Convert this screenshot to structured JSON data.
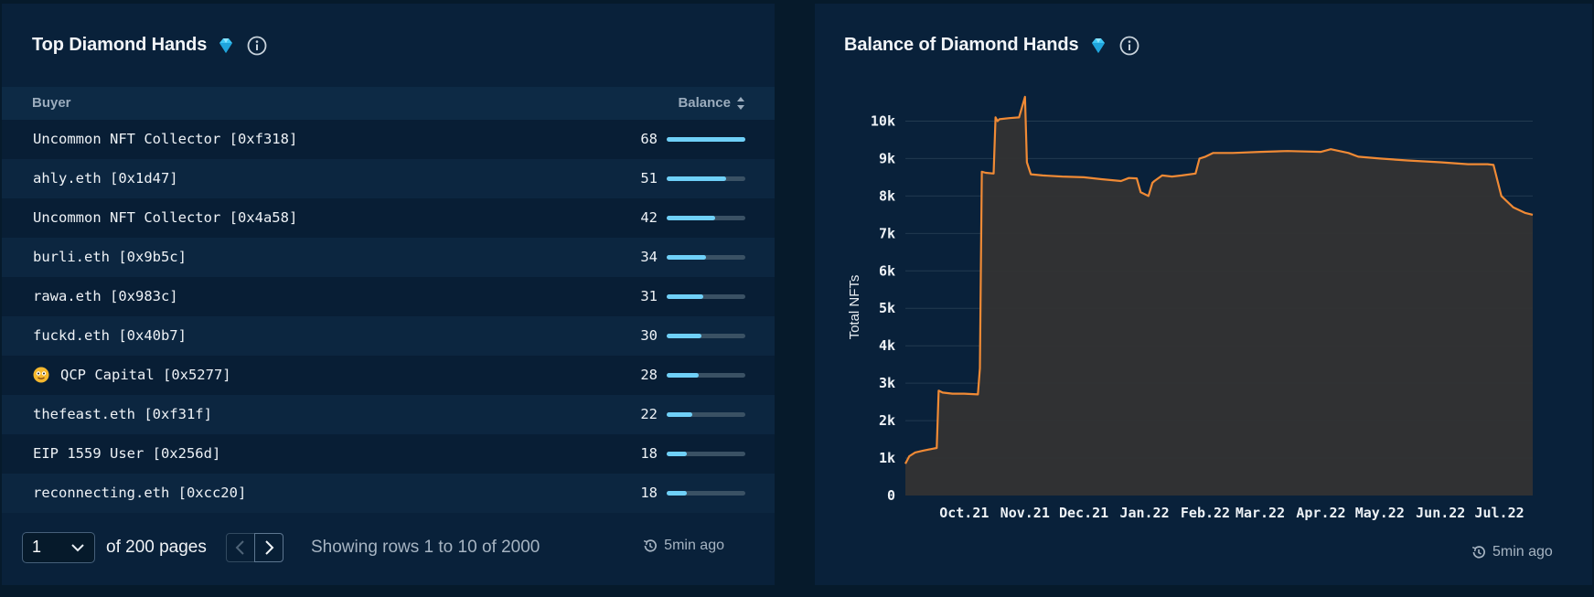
{
  "colors": {
    "accent": "#6fd0f8",
    "line": "#f08a35",
    "area": "#333333",
    "panel": "#09213a"
  },
  "left_panel": {
    "title": "Top Diamond Hands",
    "title_icon": "diamond-icon",
    "info_icon": "info-icon",
    "headers": {
      "buyer": "Buyer",
      "balance": "Balance"
    },
    "rows": [
      {
        "buyer": "Uncommon NFT Collector [0xf318]",
        "balance": "68",
        "share": 1.0
      },
      {
        "buyer": "ahly.eth [0x1d47]",
        "balance": "51",
        "share": 0.75
      },
      {
        "buyer": "Uncommon NFT Collector [0x4a58]",
        "balance": "42",
        "share": 0.62
      },
      {
        "buyer": "burli.eth [0x9b5c]",
        "balance": "34",
        "share": 0.5
      },
      {
        "buyer": "rawa.eth [0x983c]",
        "balance": "31",
        "share": 0.46
      },
      {
        "buyer": "fuckd.eth [0x40b7]",
        "balance": "30",
        "share": 0.44
      },
      {
        "buyer": "QCP Capital [0x5277]",
        "balance": "28",
        "share": 0.41,
        "avatar": "emoji-face-icon"
      },
      {
        "buyer": "thefeast.eth [0xf31f]",
        "balance": "22",
        "share": 0.32
      },
      {
        "buyer": "EIP 1559 User [0x256d]",
        "balance": "18",
        "share": 0.26
      },
      {
        "buyer": "reconnecting.eth [0xcc20]",
        "balance": "18",
        "share": 0.26
      }
    ],
    "pagination": {
      "current_page": "1",
      "of_pages": "of 200 pages",
      "showing": "Showing rows 1 to 10 of 2000"
    },
    "updated": "5min ago"
  },
  "right_panel": {
    "title": "Balance of Diamond Hands",
    "title_icon": "diamond-icon",
    "info_icon": "info-icon",
    "updated": "5min ago"
  },
  "chart_data": {
    "type": "area",
    "xlabel": "",
    "ylabel": "Total NFTs",
    "ylim": [
      0,
      10500
    ],
    "yticks": [
      0,
      1000,
      2000,
      3000,
      4000,
      5000,
      6000,
      7000,
      8000,
      9000,
      10000
    ],
    "ytick_labels": [
      "0",
      "1k",
      "2k",
      "3k",
      "4k",
      "5k",
      "6k",
      "7k",
      "8k",
      "9k",
      "10k"
    ],
    "xlim": [
      "2021-09-01",
      "2022-07-18"
    ],
    "xticks": [
      "2021-10-01",
      "2021-11-01",
      "2021-12-01",
      "2022-01-01",
      "2022-02-01",
      "2022-03-01",
      "2022-04-01",
      "2022-05-01",
      "2022-06-01",
      "2022-07-01"
    ],
    "xtick_labels": [
      "Oct.21",
      "Nov.21",
      "Dec.21",
      "Jan.22",
      "Feb.22",
      "Mar.22",
      "Apr.22",
      "May.22",
      "Jun.22",
      "Jul.22"
    ],
    "grid": true,
    "series": [
      {
        "x": [
          "2021-09-01",
          "2021-09-03",
          "2021-09-06",
          "2021-09-10",
          "2021-09-15",
          "2021-09-17",
          "2021-09-18",
          "2021-09-20",
          "2021-09-25",
          "2021-10-01",
          "2021-10-08",
          "2021-10-09",
          "2021-10-10",
          "2021-10-12",
          "2021-10-16",
          "2021-10-17",
          "2021-10-18",
          "2021-10-19",
          "2021-10-24",
          "2021-10-29",
          "2021-11-01",
          "2021-11-02",
          "2021-11-04",
          "2021-11-10",
          "2021-11-20",
          "2021-12-01",
          "2021-12-10",
          "2021-12-20",
          "2021-12-24",
          "2021-12-28",
          "2021-12-30",
          "2022-01-03",
          "2022-01-05",
          "2022-01-06",
          "2022-01-10",
          "2022-01-15",
          "2022-01-20",
          "2022-01-27",
          "2022-01-29",
          "2022-02-01",
          "2022-02-05",
          "2022-02-15",
          "2022-03-01",
          "2022-03-15",
          "2022-04-01",
          "2022-04-06",
          "2022-04-15",
          "2022-04-20",
          "2022-05-01",
          "2022-05-15",
          "2022-06-01",
          "2022-06-15",
          "2022-06-25",
          "2022-06-28",
          "2022-07-02",
          "2022-07-08",
          "2022-07-14",
          "2022-07-18"
        ],
        "y": [
          850,
          1050,
          1150,
          1200,
          1250,
          1270,
          2800,
          2750,
          2720,
          2720,
          2700,
          3400,
          8650,
          8620,
          8600,
          10100,
          10000,
          10050,
          10080,
          10100,
          10650,
          8900,
          8580,
          8550,
          8520,
          8500,
          8450,
          8400,
          8480,
          8470,
          8100,
          8000,
          8350,
          8400,
          8550,
          8520,
          8550,
          8600,
          9000,
          9050,
          9150,
          9150,
          9180,
          9200,
          9180,
          9250,
          9150,
          9050,
          9000,
          8950,
          8900,
          8850,
          8850,
          8830,
          8000,
          7700,
          7550,
          7500
        ]
      }
    ]
  }
}
